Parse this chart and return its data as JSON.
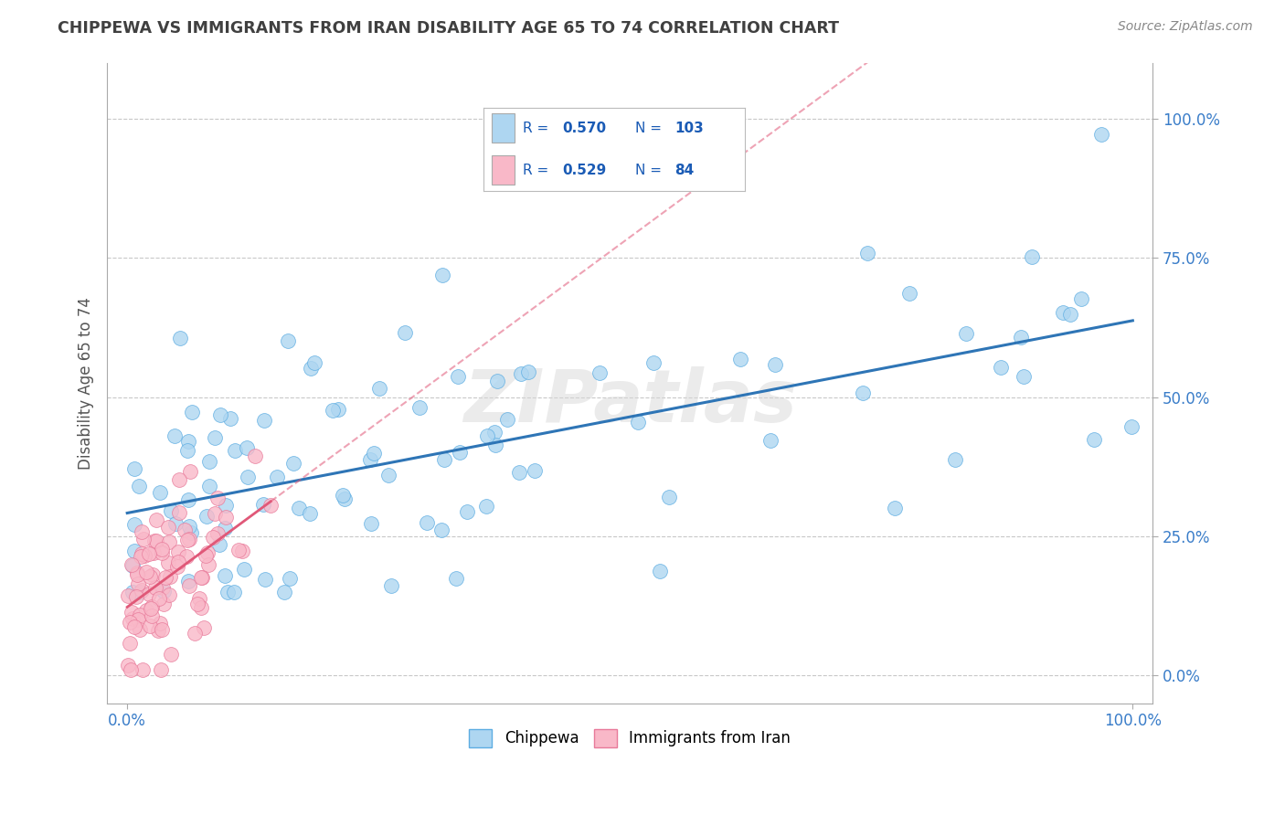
{
  "title": "CHIPPEWA VS IMMIGRANTS FROM IRAN DISABILITY AGE 65 TO 74 CORRELATION CHART",
  "source": "Source: ZipAtlas.com",
  "ylabel": "Disability Age 65 to 74",
  "ytick_labels": [
    "0.0%",
    "25.0%",
    "50.0%",
    "75.0%",
    "100.0%"
  ],
  "ytick_values": [
    0.0,
    0.25,
    0.5,
    0.75,
    1.0
  ],
  "xlim": [
    -0.02,
    1.02
  ],
  "ylim": [
    -0.05,
    1.1
  ],
  "series1_name": "Chippewa",
  "series1_color": "#aed6f1",
  "series1_edge": "#5dade2",
  "series1_line_color": "#2e75b6",
  "series1_R": 0.57,
  "series1_N": 103,
  "series2_name": "Immigrants from Iran",
  "series2_color": "#f9b8c8",
  "series2_edge": "#e87a9a",
  "series2_line_color": "#e05878",
  "series2_R": 0.529,
  "series2_N": 84,
  "legend_color": "#1a5bb5",
  "watermark": "ZIPatlas",
  "background_color": "#ffffff",
  "grid_color": "#c8c8c8",
  "title_color": "#404040",
  "title_fontsize": 12.5,
  "source_color": "#888888"
}
